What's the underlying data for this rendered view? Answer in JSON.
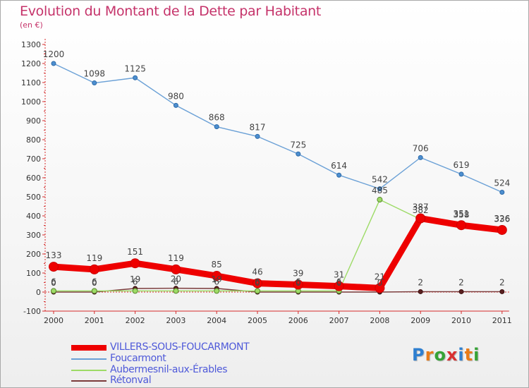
{
  "chart_data": {
    "type": "line",
    "title": "Evolution du Montant de la Dette par Habitant",
    "subtitle": "(en €)",
    "x": [
      "2000",
      "2001",
      "2002",
      "2003",
      "2004",
      "2005",
      "2006",
      "2007",
      "2008",
      "2009",
      "2010",
      "2011"
    ],
    "ylim": [
      -100,
      1300
    ],
    "yticks": [
      -100,
      0,
      100,
      200,
      300,
      400,
      500,
      600,
      700,
      800,
      900,
      1000,
      1100,
      1200,
      1300
    ],
    "grid": false,
    "legend_position": "bottom-left",
    "series": [
      {
        "name": "VILLERS-SOUS-FOUCARMONT",
        "color": "#ee0000",
        "values": [
          133,
          119,
          151,
          119,
          85,
          46,
          39,
          31,
          21,
          387,
          351,
          326
        ]
      },
      {
        "name": "Foucarmont",
        "color": "#6aa0d6",
        "values": [
          1200,
          1098,
          1125,
          980,
          868,
          817,
          725,
          614,
          542,
          706,
          619,
          524
        ]
      },
      {
        "name": "Aubermesnil-aux-Érables",
        "color": "#9ddb66",
        "values": [
          6,
          6,
          6,
          6,
          6,
          6,
          6,
          6,
          485,
          382,
          358,
          336
        ]
      },
      {
        "name": "Rétonval",
        "color": "#7b3b3b",
        "values": [
          0,
          0,
          19,
          20,
          19,
          0,
          0,
          0,
          0,
          2,
          2,
          2
        ]
      }
    ]
  },
  "logo": {
    "letters": [
      "P",
      "r",
      "o",
      "x",
      "i",
      "t",
      "i"
    ],
    "colors": [
      "#2e7fd0",
      "#e87b18",
      "#36a336",
      "#d93030",
      "#2e7fd0",
      "#e87b18",
      "#36a336"
    ]
  }
}
